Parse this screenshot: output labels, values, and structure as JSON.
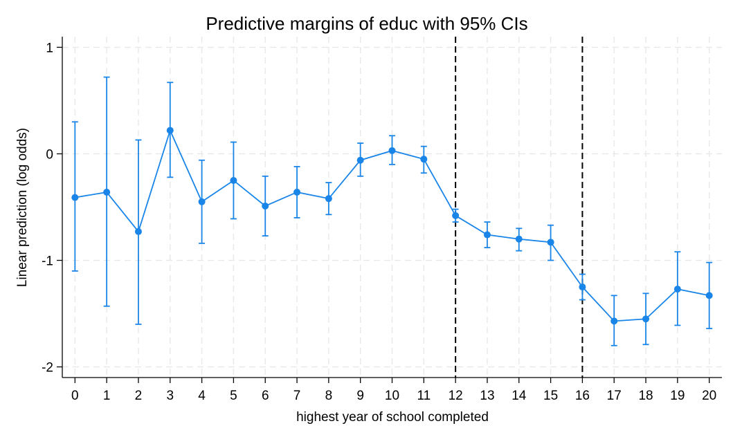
{
  "chart_data": {
    "type": "line",
    "title": "Predictive margins of educ with 95% CIs",
    "xlabel": "highest year of school completed",
    "ylabel": "Linear prediction (log odds)",
    "x": [
      0,
      1,
      2,
      3,
      4,
      5,
      6,
      7,
      8,
      9,
      10,
      11,
      12,
      13,
      14,
      15,
      16,
      17,
      18,
      19,
      20
    ],
    "x_tick_labels": [
      "0",
      "1",
      "2",
      "3",
      "4",
      "5",
      "6",
      "7",
      "8",
      "9",
      "10",
      "11",
      "12",
      "13",
      "14",
      "15",
      "16",
      "17",
      "18",
      "19",
      "20"
    ],
    "y_ticks": [
      1,
      0,
      -1,
      -2
    ],
    "y_tick_labels": [
      "1",
      "0",
      "-1",
      "-2"
    ],
    "xlim": [
      -0.4,
      20.4
    ],
    "ylim": [
      -2.1,
      1.1
    ],
    "series": [
      {
        "values": [
          -0.41,
          -0.36,
          -0.73,
          0.22,
          -0.45,
          -0.25,
          -0.49,
          -0.36,
          -0.42,
          -0.06,
          0.03,
          -0.05,
          -0.58,
          -0.76,
          -0.8,
          -0.83,
          -1.25,
          -1.57,
          -1.55,
          -1.27,
          -1.33
        ],
        "ci_lower": [
          -1.1,
          -1.43,
          -1.6,
          -0.22,
          -0.84,
          -0.61,
          -0.77,
          -0.6,
          -0.57,
          -0.21,
          -0.1,
          -0.18,
          -0.64,
          -0.88,
          -0.91,
          -1.0,
          -1.37,
          -1.8,
          -1.79,
          -1.61,
          -1.64
        ],
        "ci_upper": [
          0.3,
          0.72,
          0.13,
          0.67,
          -0.06,
          0.11,
          -0.21,
          -0.12,
          -0.27,
          0.1,
          0.17,
          0.07,
          -0.52,
          -0.64,
          -0.7,
          -0.67,
          -1.13,
          -1.33,
          -1.31,
          -0.92,
          -1.02
        ]
      }
    ],
    "reference_lines_x": [
      12,
      16
    ],
    "grid": true,
    "legend": "none",
    "colors": {
      "series": "#1a85e8",
      "reference": "#000000",
      "grid": "#e8e8e8"
    }
  }
}
